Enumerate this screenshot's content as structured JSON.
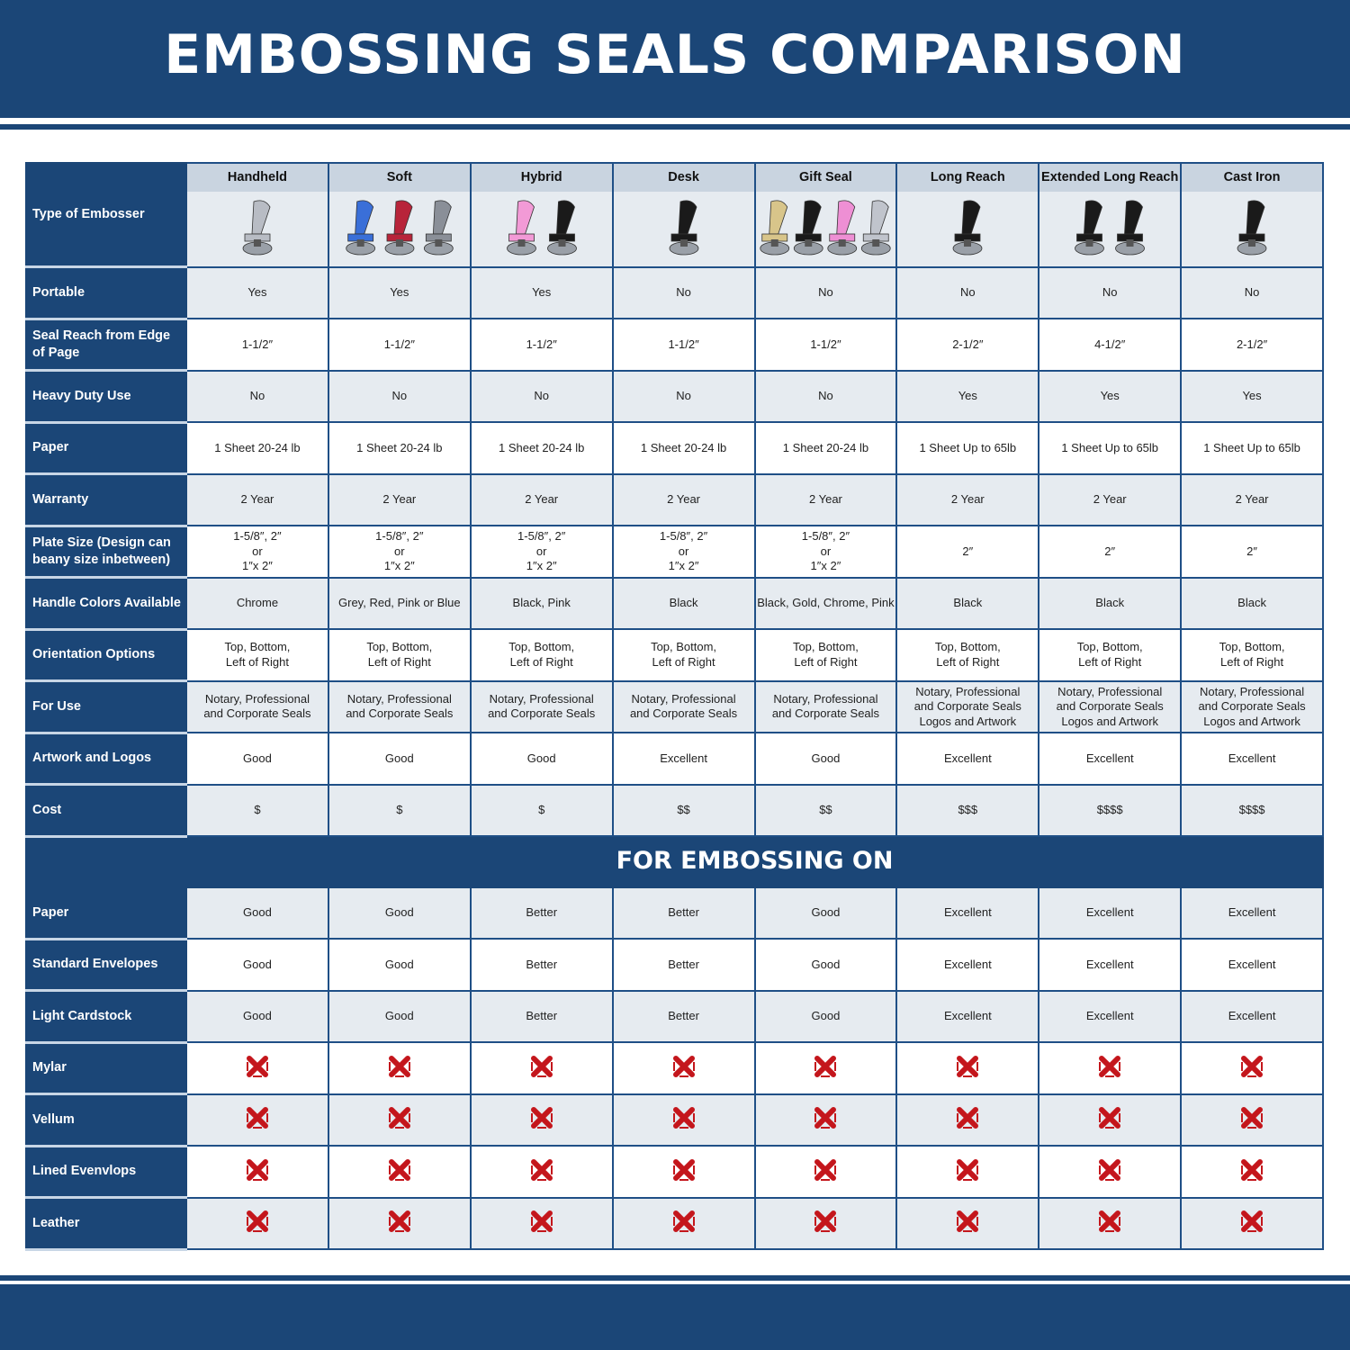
{
  "title": "EMBOSSING SEALS COMPARISON",
  "header_label": "Type of Embosser",
  "columns": [
    {
      "name": "Handheld",
      "image": "chrome-handheld-embosser",
      "colors": [
        "#b8bcc4"
      ]
    },
    {
      "name": "Soft",
      "image": "soft-embossers",
      "colors": [
        "#3a6fd8",
        "#b8243a",
        "#8a8f98"
      ]
    },
    {
      "name": "Hybrid",
      "image": "hybrid-embossers",
      "colors": [
        "#f29ad6",
        "#1a1a1a"
      ]
    },
    {
      "name": "Desk",
      "image": "desk-embosser",
      "colors": [
        "#1a1a1a"
      ]
    },
    {
      "name": "Gift Seal",
      "image": "gift-seal-embossers",
      "colors": [
        "#d8c58a",
        "#1a1a1a",
        "#ee8fd4",
        "#c0c4cc"
      ]
    },
    {
      "name": "Long Reach",
      "image": "long-reach-embosser",
      "colors": [
        "#1a1a1a"
      ]
    },
    {
      "name": "Extended Long Reach",
      "image": "extended-long-reach-embossers",
      "colors": [
        "#1a1a1a",
        "#1a1a1a"
      ]
    },
    {
      "name": "Cast Iron",
      "image": "cast-iron-embosser",
      "colors": [
        "#1a1a1a"
      ]
    }
  ],
  "rows": [
    {
      "label": "Portable",
      "values": [
        "Yes",
        "Yes",
        "Yes",
        "No",
        "No",
        "No",
        "No",
        "No"
      ]
    },
    {
      "label": "Seal Reach from Edge of Page",
      "values": [
        "1-1/2″",
        "1-1/2″",
        "1-1/2″",
        "1-1/2″",
        "1-1/2″",
        "2-1/2″",
        "4-1/2″",
        "2-1/2″"
      ]
    },
    {
      "label": "Heavy Duty Use",
      "values": [
        "No",
        "No",
        "No",
        "No",
        "No",
        "Yes",
        "Yes",
        "Yes"
      ]
    },
    {
      "label": "Paper",
      "values": [
        "1 Sheet 20-24 lb",
        "1 Sheet 20-24 lb",
        "1 Sheet 20-24 lb",
        "1 Sheet 20-24 lb",
        "1 Sheet 20-24 lb",
        "1 Sheet Up to 65lb",
        "1 Sheet Up to 65lb",
        "1 Sheet Up to 65lb"
      ]
    },
    {
      "label": "Warranty",
      "values": [
        "2 Year",
        "2 Year",
        "2 Year",
        "2 Year",
        "2 Year",
        "2 Year",
        "2 Year",
        "2 Year"
      ]
    },
    {
      "label": "Plate Size (Design can beany size inbetween)",
      "values": [
        "1-5/8″, 2″\nor\n1″x 2″",
        "1-5/8″, 2″\nor\n1″x 2″",
        "1-5/8″, 2″\nor\n1″x 2″",
        "1-5/8″, 2″\nor\n1″x 2″",
        "1-5/8″, 2″\nor\n1″x 2″",
        "2″",
        "2″",
        "2″"
      ]
    },
    {
      "label": "Handle Colors Available",
      "values": [
        "Chrome",
        "Grey, Red, Pink or Blue",
        "Black, Pink",
        "Black",
        "Black, Gold, Chrome, Pink",
        "Black",
        "Black",
        "Black"
      ]
    },
    {
      "label": "Orientation Options",
      "values": [
        "Top, Bottom,\nLeft of Right",
        "Top, Bottom,\nLeft of Right",
        "Top, Bottom,\nLeft of Right",
        "Top, Bottom,\nLeft of Right",
        "Top, Bottom,\nLeft of Right",
        "Top, Bottom,\nLeft of Right",
        "Top, Bottom,\nLeft of Right",
        "Top, Bottom,\nLeft of Right"
      ]
    },
    {
      "label": "For Use",
      "values": [
        "Notary, Professional\nand Corporate Seals",
        "Notary, Professional\nand Corporate Seals",
        "Notary, Professional\nand Corporate Seals",
        "Notary, Professional\nand Corporate Seals",
        "Notary, Professional\nand Corporate Seals",
        "Notary, Professional\nand Corporate Seals\nLogos and Artwork",
        "Notary, Professional\nand Corporate Seals\nLogos and Artwork",
        "Notary, Professional\nand Corporate Seals\nLogos and Artwork"
      ]
    },
    {
      "label": "Artwork and Logos",
      "values": [
        "Good",
        "Good",
        "Good",
        "Excellent",
        "Good",
        "Excellent",
        "Excellent",
        "Excellent"
      ]
    },
    {
      "label": "Cost",
      "values": [
        "$",
        "$",
        "$",
        "$$",
        "$$",
        "$$$",
        "$$$$",
        "$$$$"
      ]
    }
  ],
  "section2_title": "FOR EMBOSSING ON",
  "rows2": [
    {
      "label": "Paper",
      "values": [
        "Good",
        "Good",
        "Better",
        "Better",
        "Good",
        "Excellent",
        "Excellent",
        "Excellent"
      ]
    },
    {
      "label": "Standard Envelopes",
      "values": [
        "Good",
        "Good",
        "Better",
        "Better",
        "Good",
        "Excellent",
        "Excellent",
        "Excellent"
      ]
    },
    {
      "label": "Light Cardstock",
      "values": [
        "Good",
        "Good",
        "Better",
        "Better",
        "Good",
        "Excellent",
        "Excellent",
        "Excellent"
      ]
    },
    {
      "label": "Mylar",
      "icon": "red-x-icon"
    },
    {
      "label": "Vellum",
      "icon": "red-x-icon"
    },
    {
      "label": "Lined Evenvlops",
      "icon": "red-x-icon"
    },
    {
      "label": "Leather",
      "icon": "red-x-icon"
    }
  ],
  "colors": {
    "brand": "#1b4677",
    "row_alt": "#e6ebf0",
    "header_strip": "#c9d4e0",
    "x_icon": "#c4161c"
  }
}
